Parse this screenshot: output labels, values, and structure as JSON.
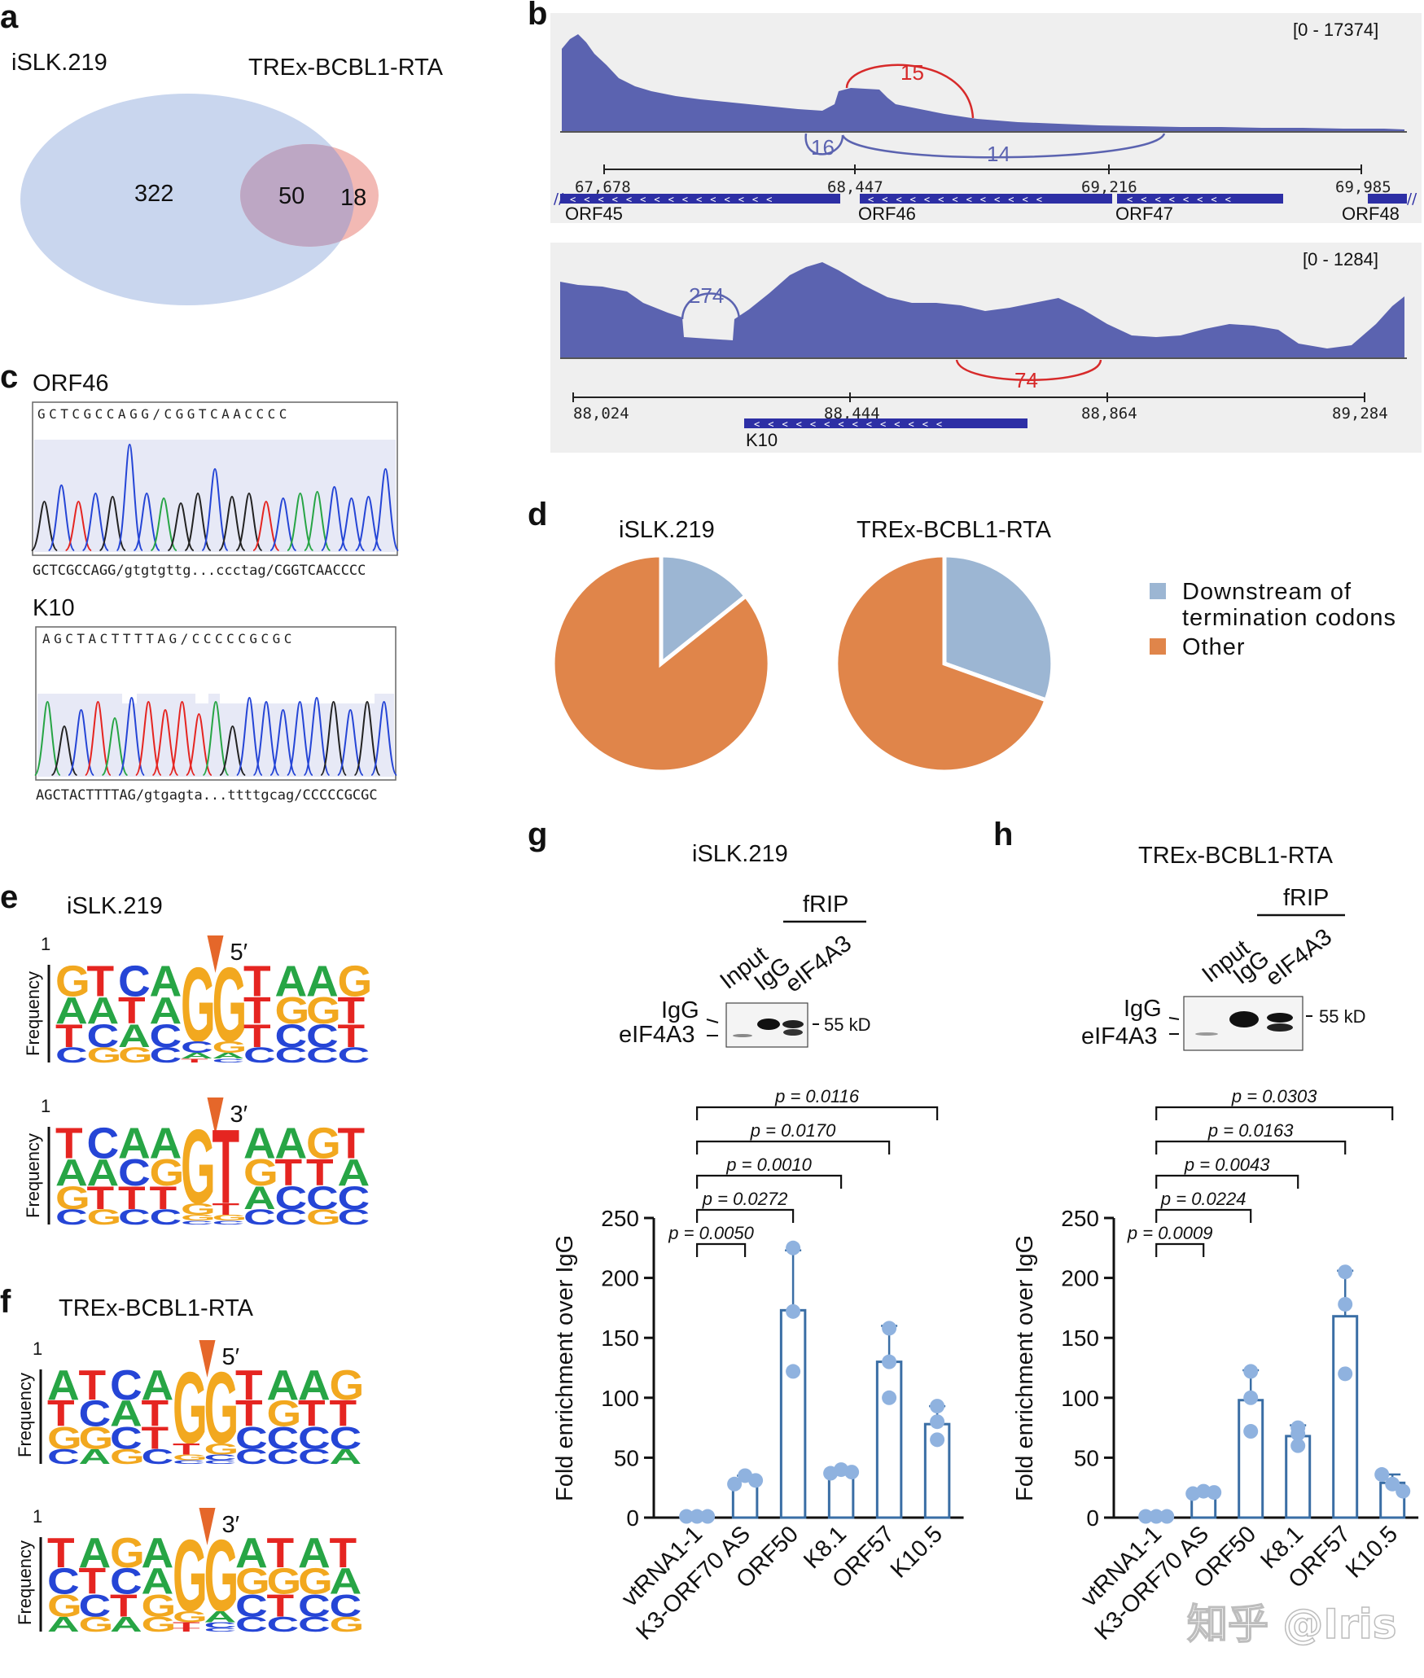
{
  "panel_letters": {
    "a": "a",
    "b": "b",
    "c": "c",
    "d": "d",
    "e": "e",
    "f": "f",
    "g": "g",
    "h": "h"
  },
  "venn": {
    "left_label": "iSLK.219",
    "right_label": "TREx-BCBL1-RTA",
    "left_only": "322",
    "overlap": "50",
    "right_only": "18",
    "left_color": "#c9d6ee",
    "right_color": "#f2b9b4",
    "overlap_color": "#bda7c4"
  },
  "tracks": [
    {
      "range": "[0 - 17374]",
      "coords": [
        "67,678",
        "68,447",
        "69,216",
        "69,985"
      ],
      "genes": [
        "ORF45",
        "ORF46",
        "ORF47",
        "ORF48"
      ],
      "junctions": [
        {
          "label": "15",
          "color": "#d72a2a"
        },
        {
          "label": "16",
          "color": "#5b63b0"
        },
        {
          "label": "14",
          "color": "#5b63b0"
        }
      ]
    },
    {
      "range": "[0 - 1284]",
      "coords": [
        "88,024",
        "88,444",
        "88,864",
        "89,284"
      ],
      "genes": [
        "K10"
      ],
      "junctions": [
        {
          "label": "274",
          "color": "#5b63b0"
        },
        {
          "label": "74",
          "color": "#d72a2a"
        }
      ]
    }
  ],
  "chromatograms": [
    {
      "title": "ORF46",
      "seq_top": "GCTCGCCAGG/CGGTCAACCCC",
      "caption": "GCTCGCCAGG/gtgtgttg...ccctag/CGGTCAACCCC"
    },
    {
      "title": "K10",
      "seq_top": "AGCTACTTTTAG/CCCCCGCGC",
      "caption": "AGCTACTTTTAG/gtgagta...ttttgcag/CCCCCGCGC"
    }
  ],
  "pie": {
    "titles": [
      "iSLK.219",
      "TREx-BCBL1-RTA"
    ],
    "legend": [
      "Downstream of",
      "termination codons",
      "Other"
    ],
    "colors": {
      "downstream": "#9cb6d3",
      "other": "#e0854a"
    }
  },
  "logos": {
    "e_title": "iSLK.219",
    "f_title": "TREx-BCBL1-RTA",
    "ylabel": "Frequency",
    "scale_top": "1",
    "marks": [
      "5′",
      "3′",
      "5′",
      "3′"
    ],
    "sequences": [
      "GTCAGGTAAG",
      "TCAAGTAAGT",
      "ATCAGGTAAG",
      "TAGAGGATAT"
    ],
    "colors": {
      "A": "#27a545",
      "C": "#2545d6",
      "G": "#f2a81f",
      "T": "#e52521"
    }
  },
  "blots": {
    "g_title": "iSLK.219",
    "h_title": "TREx-BCBL1-RTA",
    "frip": "fRIP",
    "lanes": [
      "Input",
      "IgG",
      "eIF4A3"
    ],
    "bands": [
      "IgG",
      "eIF4A3"
    ],
    "kd": "55 kD"
  },
  "chart_data": [
    {
      "type": "bar",
      "title": "iSLK.219",
      "ylabel": "Fold enrichment over IgG",
      "categories": [
        "vtRNA1-1",
        "K3-ORF70 AS",
        "ORF50",
        "K8.1",
        "ORF57",
        "K10.5"
      ],
      "values": [
        1,
        31,
        173,
        38,
        130,
        78
      ],
      "errors": [
        0.5,
        4,
        50,
        3,
        30,
        15
      ],
      "points": [
        [
          1,
          1,
          1
        ],
        [
          28,
          35,
          31
        ],
        [
          225,
          172,
          122
        ],
        [
          37,
          40,
          38
        ],
        [
          158,
          130,
          100
        ],
        [
          93,
          80,
          65
        ]
      ],
      "ylim": [
        0,
        250
      ],
      "yticks": [
        0,
        50,
        100,
        150,
        200,
        250
      ],
      "comparisons": [
        {
          "label": "p = 0.0050",
          "target": "K3-ORF70 AS"
        },
        {
          "label": "p = 0.0272",
          "target": "ORF50"
        },
        {
          "label": "p = 0.0010",
          "target": "K8.1"
        },
        {
          "label": "p = 0.0170",
          "target": "ORF57"
        },
        {
          "label": "p = 0.0116",
          "target": "K10.5"
        }
      ]
    },
    {
      "type": "bar",
      "title": "TREx-BCBL1-RTA",
      "ylabel": "Fold enrichment over IgG",
      "categories": [
        "vtRNA1-1",
        "K3-ORF70 AS",
        "ORF50",
        "K8.1",
        "ORF57",
        "K10.5"
      ],
      "values": [
        1,
        21,
        98,
        68,
        168,
        29
      ],
      "errors": [
        0.5,
        2,
        25,
        9,
        38,
        7
      ],
      "points": [
        [
          1,
          1,
          1
        ],
        [
          20,
          22,
          21
        ],
        [
          122,
          100,
          72
        ],
        [
          75,
          70,
          60
        ],
        [
          205,
          178,
          120
        ],
        [
          36,
          28,
          22
        ]
      ],
      "ylim": [
        0,
        250
      ],
      "yticks": [
        0,
        50,
        100,
        150,
        200,
        250
      ],
      "comparisons": [
        {
          "label": "p = 0.0009",
          "target": "K3-ORF70 AS"
        },
        {
          "label": "p = 0.0224",
          "target": "ORF50"
        },
        {
          "label": "p = 0.0043",
          "target": "K8.1"
        },
        {
          "label": "p = 0.0163",
          "target": "ORF57"
        },
        {
          "label": "p = 0.0303",
          "target": "K10.5"
        }
      ]
    }
  ],
  "watermark": "知乎 @Iris"
}
